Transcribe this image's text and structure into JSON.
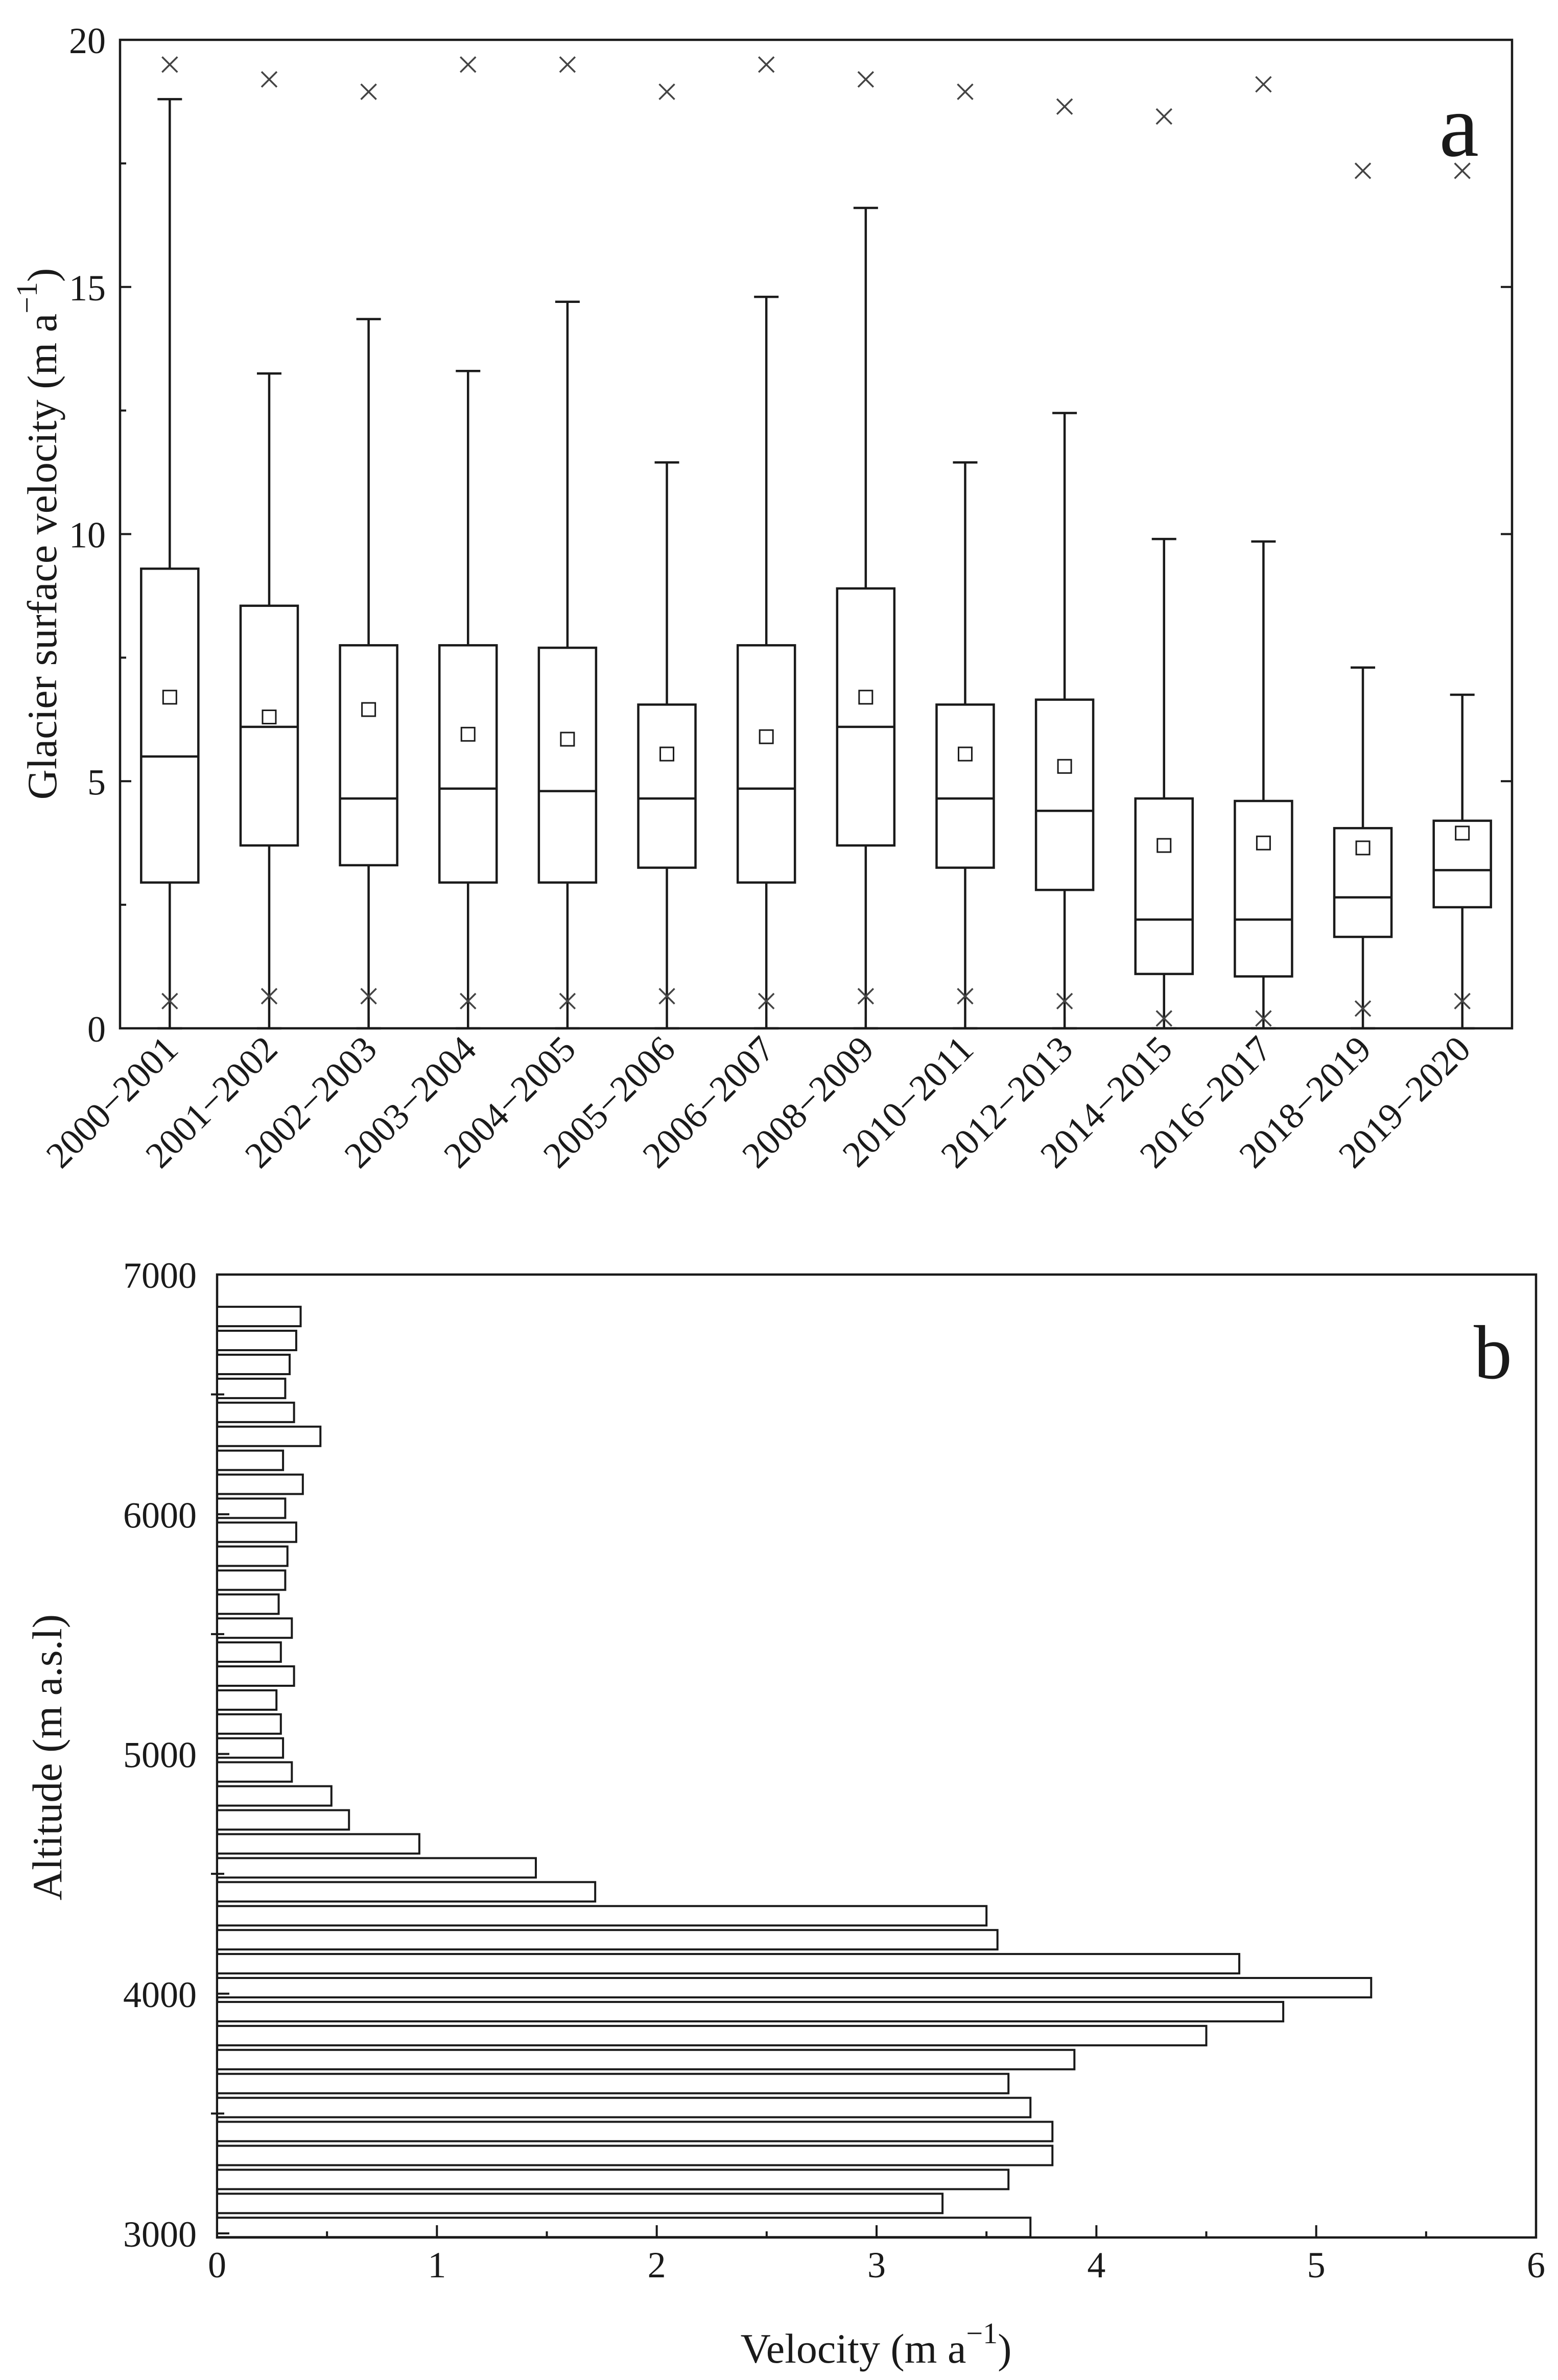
{
  "chart_data": [
    {
      "panel_label": "a",
      "type": "box",
      "ylabel_main": "Glacier surface velocity (m a",
      "ylabel_sup": "−1",
      "ylabel_end": ")",
      "ylim": [
        0,
        20
      ],
      "yticks": [
        0,
        5,
        10,
        15,
        20
      ],
      "categories": [
        "2000−2001",
        "2001−2002",
        "2002−2003",
        "2003−2004",
        "2004−2005",
        "2005−2006",
        "2006−2007",
        "2008−2009",
        "2010−2011",
        "2012−2013",
        "2014−2015",
        "2016−2017",
        "2018−2019",
        "2019−2020"
      ],
      "boxes": [
        {
          "min": 0.55,
          "whisker_low": 0.0,
          "q1": 2.95,
          "median": 5.5,
          "q3": 9.3,
          "whisker_high": 18.8,
          "mean": 6.7,
          "max": 19.5
        },
        {
          "min": 0.65,
          "whisker_low": 0.0,
          "q1": 3.7,
          "median": 6.1,
          "q3": 8.55,
          "whisker_high": 13.25,
          "mean": 6.3,
          "max": 19.2
        },
        {
          "min": 0.65,
          "whisker_low": 0.0,
          "q1": 3.3,
          "median": 4.65,
          "q3": 7.75,
          "whisker_high": 14.35,
          "mean": 6.45,
          "max": 18.95
        },
        {
          "min": 0.55,
          "whisker_low": 0.0,
          "q1": 2.95,
          "median": 4.85,
          "q3": 7.75,
          "whisker_high": 13.3,
          "mean": 5.95,
          "max": 19.5
        },
        {
          "min": 0.55,
          "whisker_low": 0.0,
          "q1": 2.95,
          "median": 4.8,
          "q3": 7.7,
          "whisker_high": 14.7,
          "mean": 5.85,
          "max": 19.5
        },
        {
          "min": 0.65,
          "whisker_low": 0.0,
          "q1": 3.25,
          "median": 4.65,
          "q3": 6.55,
          "whisker_high": 11.45,
          "mean": 5.55,
          "max": 18.95
        },
        {
          "min": 0.55,
          "whisker_low": 0.0,
          "q1": 2.95,
          "median": 4.85,
          "q3": 7.75,
          "whisker_high": 14.8,
          "mean": 5.9,
          "max": 19.5
        },
        {
          "min": 0.65,
          "whisker_low": 0.0,
          "q1": 3.7,
          "median": 6.1,
          "q3": 8.9,
          "whisker_high": 16.6,
          "mean": 6.7,
          "max": 19.2
        },
        {
          "min": 0.65,
          "whisker_low": 0.0,
          "q1": 3.25,
          "median": 4.65,
          "q3": 6.55,
          "whisker_high": 11.45,
          "mean": 5.55,
          "max": 18.95
        },
        {
          "min": 0.55,
          "whisker_low": 0.0,
          "q1": 2.8,
          "median": 4.4,
          "q3": 6.65,
          "whisker_high": 12.45,
          "mean": 5.3,
          "max": 18.65
        },
        {
          "min": 0.2,
          "whisker_low": 0.0,
          "q1": 1.1,
          "median": 2.2,
          "q3": 4.65,
          "whisker_high": 9.9,
          "mean": 3.7,
          "max": 18.45
        },
        {
          "min": 0.2,
          "whisker_low": 0.0,
          "q1": 1.05,
          "median": 2.2,
          "q3": 4.6,
          "whisker_high": 9.85,
          "mean": 3.75,
          "max": 19.1
        },
        {
          "min": 0.4,
          "whisker_low": 0.0,
          "q1": 1.85,
          "median": 2.65,
          "q3": 4.05,
          "whisker_high": 7.3,
          "mean": 3.65,
          "max": 17.35
        },
        {
          "min": 0.55,
          "whisker_low": 0.0,
          "q1": 2.45,
          "median": 3.2,
          "q3": 4.2,
          "whisker_high": 6.75,
          "mean": 3.95,
          "max": 17.35
        }
      ]
    },
    {
      "panel_label": "b",
      "type": "bar",
      "orientation": "horizontal",
      "xlabel_main": "Velocity (m a",
      "xlabel_sup": "−1",
      "xlabel_end": ")",
      "ylabel": "Altitude (m a.s.l)",
      "xlim": [
        0,
        6
      ],
      "xticks": [
        0,
        1,
        2,
        3,
        4,
        5,
        6
      ],
      "ylim": [
        3000,
        7000
      ],
      "yticks": [
        3000,
        4000,
        5000,
        6000,
        7000
      ],
      "altitudes": [
        3000,
        3100,
        3200,
        3300,
        3400,
        3500,
        3600,
        3700,
        3800,
        3900,
        4000,
        4100,
        4200,
        4300,
        4400,
        4500,
        4600,
        4700,
        4800,
        4900,
        5000,
        5100,
        5200,
        5300,
        5400,
        5500,
        5600,
        5700,
        5800,
        5900,
        6000,
        6100,
        6200,
        6300,
        6400,
        6500,
        6600,
        6700,
        6800
      ],
      "values": [
        3.7,
        3.3,
        3.6,
        3.8,
        3.8,
        3.7,
        3.6,
        3.9,
        4.5,
        4.85,
        5.25,
        4.65,
        3.55,
        3.5,
        1.72,
        1.45,
        0.92,
        0.6,
        0.52,
        0.34,
        0.3,
        0.29,
        0.27,
        0.35,
        0.29,
        0.34,
        0.28,
        0.31,
        0.32,
        0.36,
        0.31,
        0.39,
        0.3,
        0.47,
        0.35,
        0.31,
        0.33,
        0.36,
        0.38
      ]
    }
  ]
}
